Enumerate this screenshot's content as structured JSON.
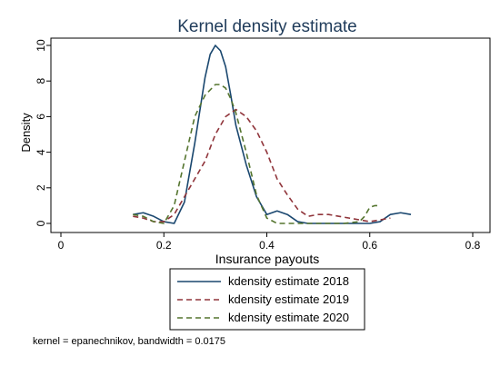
{
  "chart_data": {
    "type": "line",
    "title": "Kernel density estimate",
    "xlabel": "Insurance payouts",
    "ylabel": "Density",
    "xlim": [
      -0.0,
      0.8
    ],
    "ylim": [
      0,
      10
    ],
    "xticks": [
      "0",
      "0.2",
      "0.4",
      "0.6",
      "0.8"
    ],
    "yticks": [
      "0",
      "2",
      "4",
      "6",
      "8",
      "10"
    ],
    "grid": false,
    "legend_position": "bottom",
    "note": "kernel = epanechnikov, bandwidth = 0.0175",
    "series": [
      {
        "name": "kdensity estimate 2018",
        "color": "#1a476f",
        "dash": "solid",
        "x": [
          0.14,
          0.16,
          0.18,
          0.2,
          0.22,
          0.24,
          0.26,
          0.28,
          0.29,
          0.3,
          0.31,
          0.32,
          0.33,
          0.34,
          0.36,
          0.38,
          0.4,
          0.42,
          0.44,
          0.46,
          0.48,
          0.5,
          0.52,
          0.55,
          0.58,
          0.6,
          0.62,
          0.64,
          0.66,
          0.68
        ],
        "y": [
          0.5,
          0.6,
          0.4,
          0.1,
          0.0,
          1.2,
          4.5,
          8.2,
          9.5,
          10.0,
          9.7,
          8.8,
          7.2,
          5.5,
          3.3,
          1.5,
          0.5,
          0.7,
          0.5,
          0.1,
          0.0,
          0.0,
          0.0,
          0.0,
          0.0,
          0.0,
          0.1,
          0.5,
          0.6,
          0.5
        ]
      },
      {
        "name": "kdensity estimate 2019",
        "color": "#90353b",
        "dash": "dashed",
        "x": [
          0.14,
          0.16,
          0.18,
          0.2,
          0.22,
          0.24,
          0.26,
          0.28,
          0.3,
          0.32,
          0.34,
          0.36,
          0.38,
          0.4,
          0.42,
          0.44,
          0.46,
          0.48,
          0.5,
          0.52,
          0.54,
          0.56,
          0.58,
          0.6,
          0.62,
          0.64
        ],
        "y": [
          0.4,
          0.3,
          0.1,
          0.1,
          0.5,
          1.5,
          2.5,
          3.5,
          5.0,
          6.0,
          6.4,
          6.0,
          5.2,
          4.0,
          2.5,
          1.6,
          0.8,
          0.4,
          0.5,
          0.5,
          0.4,
          0.3,
          0.2,
          0.1,
          0.2,
          0.3
        ]
      },
      {
        "name": "kdensity estimate 2020",
        "color": "#55752f",
        "dash": "dashed",
        "x": [
          0.14,
          0.16,
          0.18,
          0.2,
          0.22,
          0.24,
          0.26,
          0.28,
          0.29,
          0.3,
          0.31,
          0.32,
          0.33,
          0.34,
          0.36,
          0.38,
          0.4,
          0.42,
          0.44,
          0.46,
          0.48,
          0.5,
          0.52,
          0.55,
          0.58,
          0.59,
          0.6,
          0.61,
          0.62
        ],
        "y": [
          0.5,
          0.4,
          0.1,
          0.0,
          1.0,
          3.5,
          6.0,
          7.2,
          7.5,
          7.8,
          7.8,
          7.6,
          7.0,
          6.2,
          4.0,
          1.6,
          0.3,
          0.0,
          0.0,
          0.0,
          0.0,
          0.0,
          0.0,
          0.0,
          0.1,
          0.4,
          0.9,
          1.0,
          1.0
        ]
      }
    ]
  }
}
